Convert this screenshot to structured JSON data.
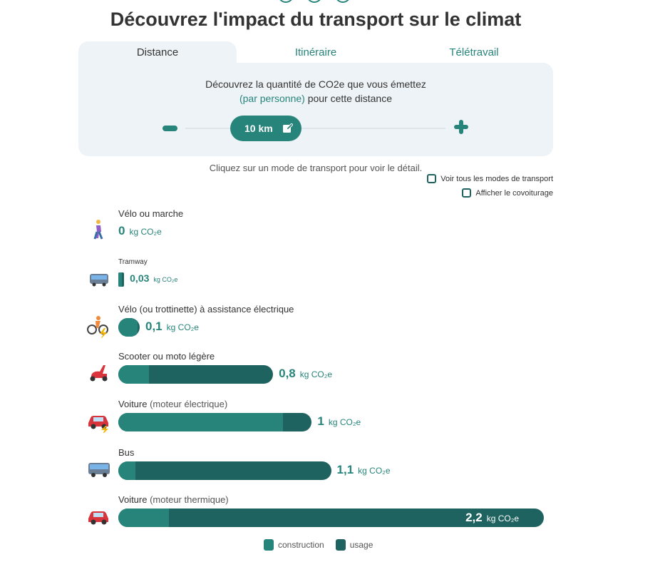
{
  "title": "Découvrez l'impact du transport sur le climat",
  "tabs": [
    {
      "label": "Distance",
      "active": true
    },
    {
      "label": "Itinéraire"
    },
    {
      "label": "Télétravail"
    }
  ],
  "panel": {
    "line1": "Découvrez la quantité de CO2e que vous émettez",
    "line2_highlight": "(par personne)",
    "line2_rest": " pour cette distance",
    "distance": "10 km"
  },
  "hint": "Cliquez sur un mode de transport pour voir le détail.",
  "options": [
    {
      "label": "Voir tous les modes de transport",
      "checked": false
    },
    {
      "label": "Afficher le covoiturage",
      "checked": false
    }
  ],
  "colors": {
    "construction": "#26847b",
    "usage": "#1f6360"
  },
  "unit": "kg CO₂e",
  "modes": [
    {
      "name": "Vélo ou marche",
      "sub": "",
      "value": "0",
      "icon": "walking-icon"
    },
    {
      "name": "Tramway",
      "sub": "",
      "value": "0,03",
      "icon": "tram-icon"
    },
    {
      "name": "Vélo (ou trottinette) à assistance électrique",
      "sub": "",
      "value": "0,1",
      "icon": "electric-bike-icon"
    },
    {
      "name": "Scooter ou moto légère",
      "sub": "",
      "value": "0,8",
      "icon": "scooter-icon"
    },
    {
      "name": "Voiture",
      "sub": " (moteur électrique)",
      "value": "1",
      "icon": "electric-car-icon"
    },
    {
      "name": "Bus",
      "sub": "",
      "value": "1,1",
      "icon": "bus-icon"
    },
    {
      "name": "Voiture",
      "sub": " (moteur thermique)",
      "value": "2,2",
      "icon": "car-icon"
    }
  ],
  "chart_data": {
    "type": "bar",
    "orientation": "horizontal",
    "stacked": true,
    "categories": [
      "Vélo ou marche",
      "Tramway",
      "Vélo (ou trottinette) à assistance électrique",
      "Scooter ou moto légère",
      "Voiture (moteur électrique)",
      "Bus",
      "Voiture (moteur thermique)"
    ],
    "series": [
      {
        "name": "construction",
        "values": [
          0,
          0.02,
          0.09,
          0.16,
          0.85,
          0.09,
          0.26
        ]
      },
      {
        "name": "usage",
        "values": [
          0,
          0.01,
          0.01,
          0.64,
          0.15,
          1.01,
          1.94
        ]
      }
    ],
    "totals": [
      0,
      0.03,
      0.1,
      0.8,
      1,
      1.1,
      2.2
    ],
    "unit": "kg CO2e",
    "legend": "bottom",
    "grid": false
  }
}
